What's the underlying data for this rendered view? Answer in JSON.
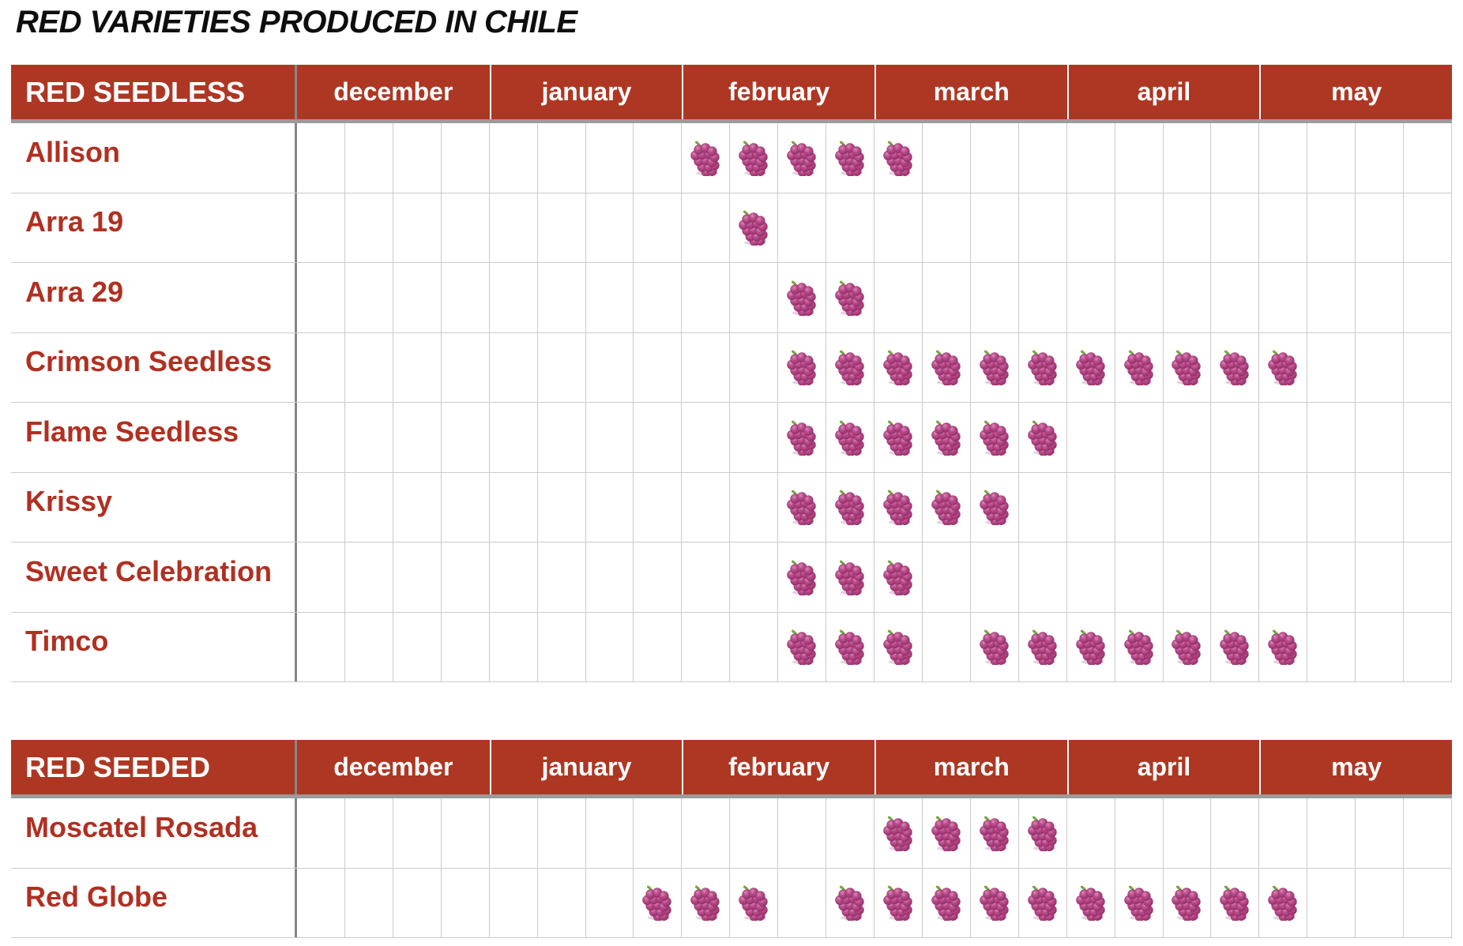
{
  "title": "RED VARIETIES PRODUCED IN CHILE",
  "colors": {
    "header_bg": "#ae3723",
    "label_text": "#b03021",
    "grid_line": "#cbcbcb",
    "column_divider": "#868686",
    "header_underline": "#9b9b9b",
    "berry": "#a23672",
    "stem": "#76a73e"
  },
  "chart_data": {
    "type": "table",
    "title": "RED VARIETIES PRODUCED IN CHILE",
    "months": [
      "december",
      "january",
      "february",
      "march",
      "april",
      "may"
    ],
    "weeks_per_month": 4,
    "marker": "grapes-icon",
    "week_indexing": "columns 1-24 = december week 1 through may week 4; a grape bunch marks availability in that week",
    "groups": [
      {
        "group": "RED SEEDLESS",
        "varieties": [
          {
            "name": "Allison",
            "available_weeks": [
              9,
              10,
              11,
              12,
              13
            ]
          },
          {
            "name": "Arra 19",
            "available_weeks": [
              10
            ]
          },
          {
            "name": "Arra 29",
            "available_weeks": [
              11,
              12
            ]
          },
          {
            "name": "Crimson Seedless",
            "available_weeks": [
              11,
              12,
              13,
              14,
              15,
              16,
              17,
              18,
              19,
              20,
              21
            ]
          },
          {
            "name": "Flame Seedless",
            "available_weeks": [
              11,
              12,
              13,
              14,
              15,
              16
            ]
          },
          {
            "name": "Krissy",
            "available_weeks": [
              11,
              12,
              13,
              14,
              15
            ]
          },
          {
            "name": "Sweet Celebration",
            "available_weeks": [
              11,
              12,
              13
            ]
          },
          {
            "name": "Timco",
            "available_weeks": [
              11,
              12,
              13,
              15,
              16,
              17,
              18,
              19,
              20,
              21
            ]
          }
        ]
      },
      {
        "group": "RED SEEDED",
        "varieties": [
          {
            "name": "Moscatel Rosada",
            "available_weeks": [
              13,
              14,
              15,
              16
            ]
          },
          {
            "name": "Red Globe",
            "available_weeks": [
              8,
              9,
              10,
              12,
              13,
              14,
              15,
              16,
              17,
              18,
              19,
              20,
              21
            ]
          }
        ]
      }
    ]
  }
}
